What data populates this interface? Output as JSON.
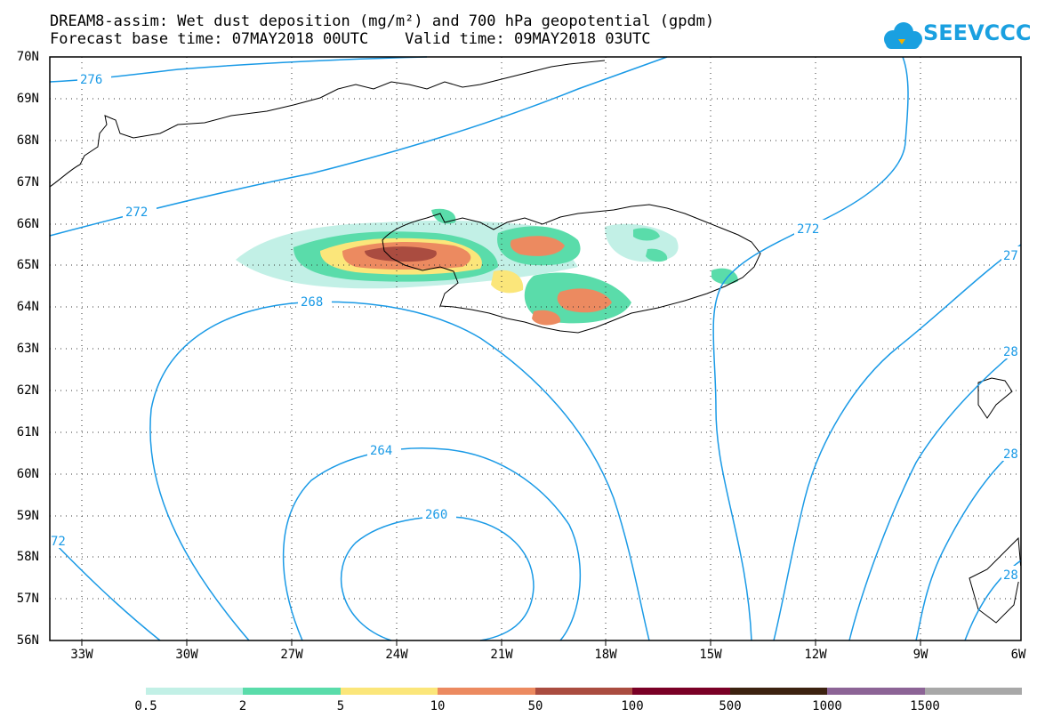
{
  "title": {
    "line1": "DREAM8-assim: Wet dust deposition (mg/m²) and 700 hPa geopotential (gpdm)",
    "line2": "Forecast base time: 07MAY2018 00UTC    Valid time: 09MAY2018 03UTC"
  },
  "logo": {
    "text": "SEEVCCC",
    "icon": "cloud-icon",
    "color": "#1aa0e0"
  },
  "map": {
    "lat_labels": [
      "70N",
      "69N",
      "68N",
      "67N",
      "66N",
      "65N",
      "64N",
      "63N",
      "62N",
      "61N",
      "60N",
      "59N",
      "58N",
      "57N",
      "56N"
    ],
    "lon_labels": [
      "33W",
      "30W",
      "27W",
      "24W",
      "21W",
      "18W",
      "15W",
      "12W",
      "9W",
      "6W"
    ],
    "contour_color": "#1a9ae6",
    "contour_labels": [
      {
        "key": "c276",
        "text": "276"
      },
      {
        "key": "c272a",
        "text": "272"
      },
      {
        "key": "c272b",
        "text": "272"
      },
      {
        "key": "c268",
        "text": "268"
      },
      {
        "key": "c264",
        "text": "264"
      },
      {
        "key": "c260",
        "text": "260"
      },
      {
        "key": "c27e",
        "text": "27"
      },
      {
        "key": "c28a",
        "text": "28"
      },
      {
        "key": "c28b",
        "text": "28"
      },
      {
        "key": "c28c",
        "text": "28"
      },
      {
        "key": "c72w",
        "text": "72"
      }
    ]
  },
  "colorbar": {
    "labels": [
      "0.5",
      "2",
      "5",
      "10",
      "50",
      "100",
      "500",
      "1000",
      "1500"
    ],
    "colors": [
      "#c2f0e6",
      "#5adcaa",
      "#fbe67a",
      "#ec8a60",
      "#aa4c40",
      "#7a0026",
      "#3c2210",
      "#8c6496",
      "#a8a8a8"
    ]
  }
}
